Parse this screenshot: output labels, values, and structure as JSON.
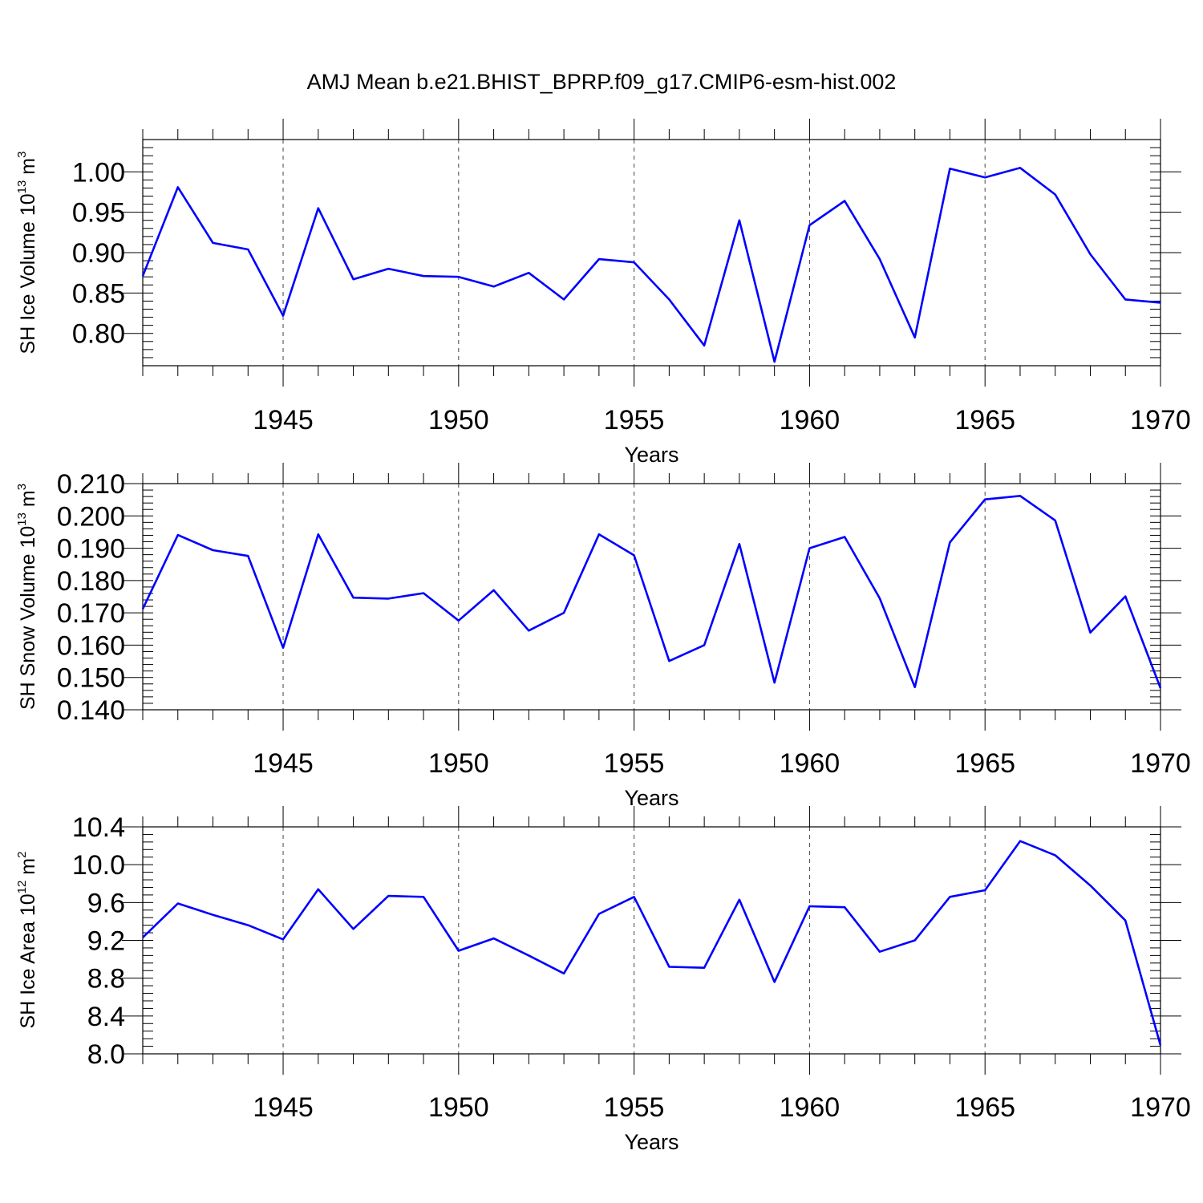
{
  "title": "AMJ Mean b.e21.BHIST_BPRP.f09_g17.CMIP6-esm-hist.002",
  "colors": {
    "series": "#0000ff",
    "frame": "#000000",
    "grid": "#444444"
  },
  "chart_data": [
    {
      "type": "line",
      "ylabel_main": "SH Ice Volume 10",
      "ylabel_exp": "13",
      "ylabel_unit": " m",
      "ylabel_unit_exp": "3",
      "xlabel": "Years",
      "xlim": [
        1941,
        1970
      ],
      "ylim": [
        0.76,
        1.04
      ],
      "xticks": [
        1945,
        1950,
        1955,
        1960,
        1965,
        1970
      ],
      "yticks": [
        0.8,
        0.85,
        0.9,
        0.95,
        1.0
      ],
      "ytick_labels": [
        "0.80",
        "0.85",
        "0.90",
        "0.95",
        "1.00"
      ],
      "yminor_step": 0.01,
      "x": [
        1941,
        1942,
        1943,
        1944,
        1945,
        1946,
        1947,
        1948,
        1949,
        1950,
        1951,
        1952,
        1953,
        1954,
        1955,
        1956,
        1957,
        1958,
        1959,
        1960,
        1961,
        1962,
        1963,
        1964,
        1965,
        1966,
        1967,
        1968,
        1969,
        1970
      ],
      "values": [
        0.871,
        0.981,
        0.912,
        0.904,
        0.822,
        0.955,
        0.867,
        0.88,
        0.871,
        0.87,
        0.858,
        0.875,
        0.842,
        0.892,
        0.888,
        0.842,
        0.785,
        0.94,
        0.765,
        0.934,
        0.964,
        0.892,
        0.795,
        1.004,
        0.993,
        1.005,
        0.972,
        0.898,
        0.842,
        0.838
      ]
    },
    {
      "type": "line",
      "ylabel_main": "SH Snow Volume 10",
      "ylabel_exp": "13",
      "ylabel_unit": " m",
      "ylabel_unit_exp": "3",
      "xlabel": "Years",
      "xlim": [
        1941,
        1970
      ],
      "ylim": [
        0.14,
        0.21
      ],
      "xticks": [
        1945,
        1950,
        1955,
        1960,
        1965,
        1970
      ],
      "yticks": [
        0.14,
        0.15,
        0.16,
        0.17,
        0.18,
        0.19,
        0.2,
        0.21
      ],
      "ytick_labels": [
        "0.140",
        "0.150",
        "0.160",
        "0.170",
        "0.180",
        "0.190",
        "0.200",
        "0.210"
      ],
      "yminor_step": 0.002,
      "x": [
        1941,
        1942,
        1943,
        1944,
        1945,
        1946,
        1947,
        1948,
        1949,
        1950,
        1951,
        1952,
        1953,
        1954,
        1955,
        1956,
        1957,
        1958,
        1959,
        1960,
        1961,
        1962,
        1963,
        1964,
        1965,
        1966,
        1967,
        1968,
        1969,
        1970
      ],
      "values": [
        0.1712,
        0.1941,
        0.1894,
        0.1876,
        0.1592,
        0.1943,
        0.1747,
        0.1744,
        0.1761,
        0.1676,
        0.177,
        0.1645,
        0.17,
        0.1943,
        0.1878,
        0.1551,
        0.16,
        0.1913,
        0.1484,
        0.19,
        0.1935,
        0.1745,
        0.147,
        0.1918,
        0.2051,
        0.2062,
        0.1986,
        0.1639,
        0.1751,
        0.1467
      ]
    },
    {
      "type": "line",
      "ylabel_main": "SH Ice Area 10",
      "ylabel_exp": "12",
      "ylabel_unit": " m",
      "ylabel_unit_exp": "2",
      "xlabel": "Years",
      "xlim": [
        1941,
        1970
      ],
      "ylim": [
        8.0,
        10.4
      ],
      "xticks": [
        1945,
        1950,
        1955,
        1960,
        1965,
        1970
      ],
      "yticks": [
        8.0,
        8.4,
        8.8,
        9.2,
        9.6,
        10.0,
        10.4
      ],
      "ytick_labels": [
        "8.0",
        "8.4",
        "8.8",
        "9.2",
        "9.6",
        "10.0",
        "10.4"
      ],
      "yminor_step": 0.08,
      "x": [
        1941,
        1942,
        1943,
        1944,
        1945,
        1946,
        1947,
        1948,
        1949,
        1950,
        1951,
        1952,
        1953,
        1954,
        1955,
        1956,
        1957,
        1958,
        1959,
        1960,
        1961,
        1962,
        1963,
        1964,
        1965,
        1966,
        1967,
        1968,
        1969,
        1970
      ],
      "values": [
        9.23,
        9.59,
        9.47,
        9.36,
        9.21,
        9.74,
        9.32,
        9.67,
        9.66,
        9.09,
        9.22,
        9.04,
        8.85,
        9.48,
        9.66,
        8.92,
        8.91,
        9.63,
        8.76,
        9.56,
        9.55,
        9.08,
        9.2,
        9.66,
        9.73,
        10.25,
        10.1,
        9.78,
        9.41,
        8.09
      ]
    }
  ]
}
